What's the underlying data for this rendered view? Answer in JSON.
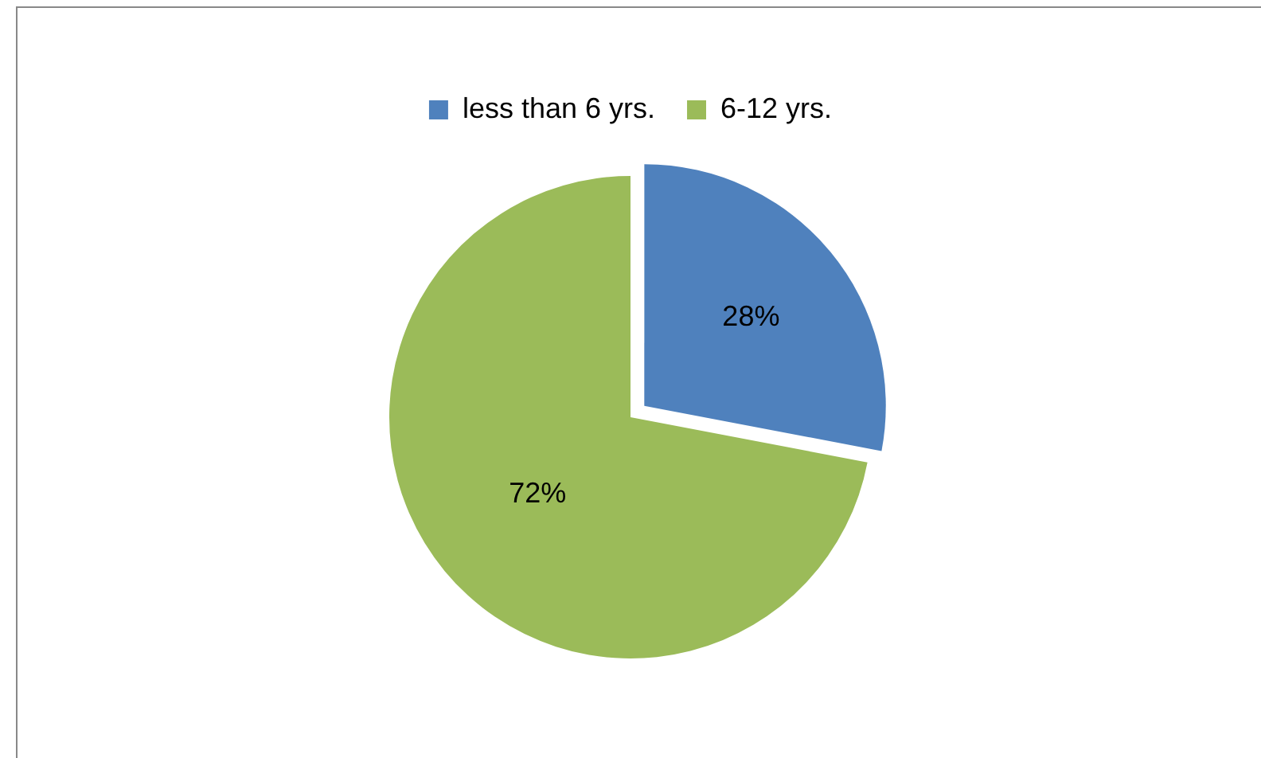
{
  "chart_data": {
    "type": "pie",
    "categories": [
      "less than 6 yrs.",
      "6-12 yrs."
    ],
    "values": [
      28,
      72
    ],
    "colors": [
      "#4f81bd",
      "#9bbb59"
    ],
    "value_labels": [
      "28%",
      "72%"
    ],
    "legend": "top"
  }
}
